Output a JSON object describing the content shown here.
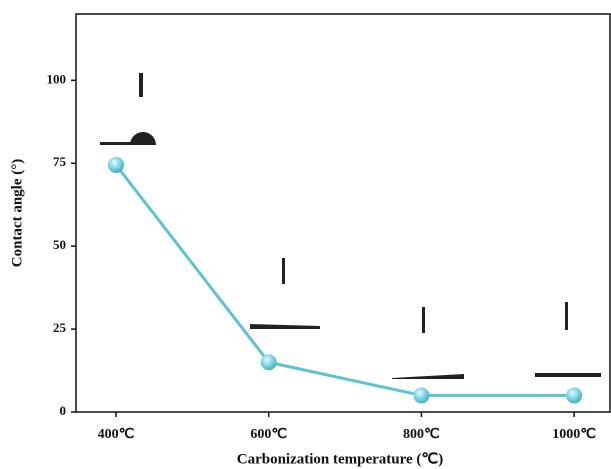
{
  "chart_data": {
    "type": "line",
    "x_label": "Carbonization temperature (℃)",
    "y_label": "Contact angle (°)",
    "categories": [
      "400℃",
      "600℃",
      "800℃",
      "1000℃"
    ],
    "series": [
      {
        "name": "Contact angle",
        "color": "#5bc4d4",
        "values": [
          74.5,
          15,
          5,
          5
        ]
      }
    ],
    "ylim": [
      0,
      120
    ],
    "yticks": [
      0,
      25,
      50,
      75,
      100
    ]
  }
}
